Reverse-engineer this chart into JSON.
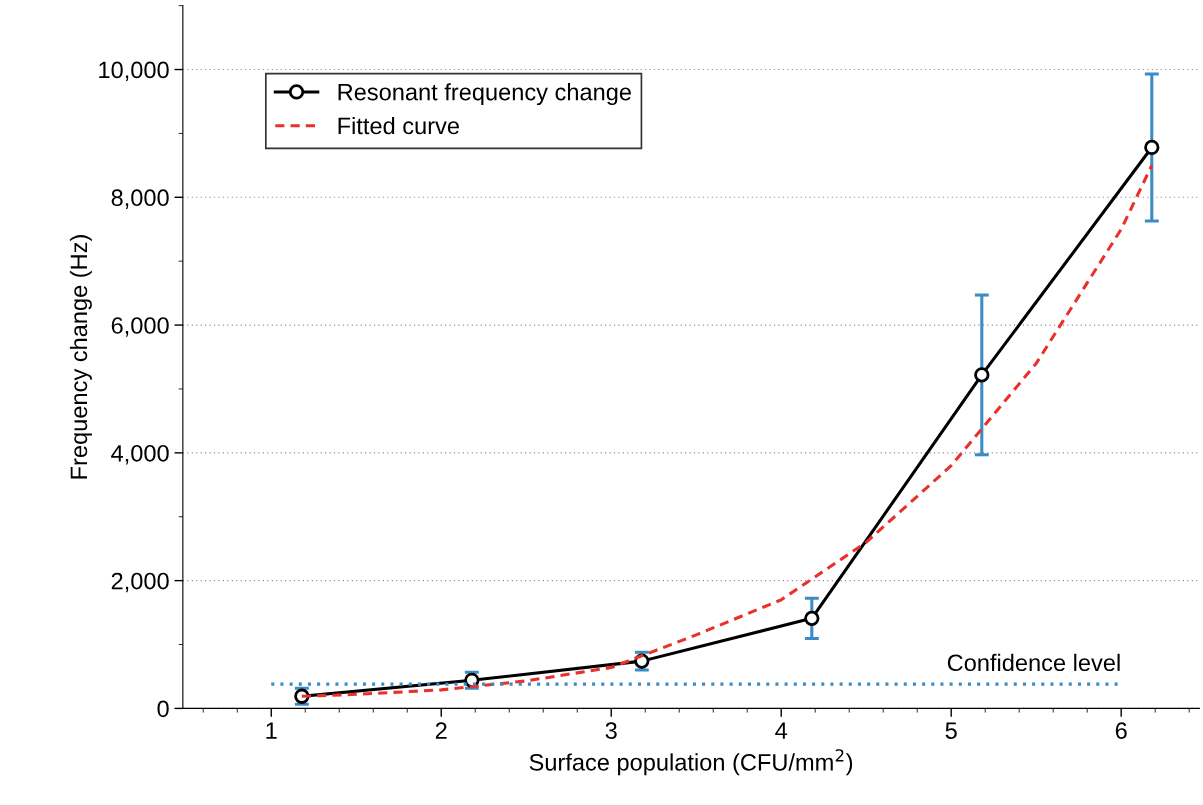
{
  "chart_data": {
    "type": "line",
    "xlabel": "Surface population (CFU/mm$^{2}$)",
    "ylabel": "Frequency change (Hz)",
    "xlim": [
      0.48,
      6.46
    ],
    "xticks": [
      1,
      2,
      3,
      4,
      5,
      6
    ],
    "ylim": [
      0,
      11000
    ],
    "yticks": [
      {
        "value": 0,
        "label": "0"
      },
      {
        "value": 2000,
        "label": "2,000"
      },
      {
        "value": 4000,
        "label": "4,000"
      },
      {
        "value": 6000,
        "label": "6,000"
      },
      {
        "value": 8000,
        "label": "8,000"
      },
      {
        "value": 10000,
        "label": "10,000"
      }
    ],
    "grid": "y",
    "legend": "top left",
    "annotations": [
      {
        "text": "Confidence level",
        "x": 6,
        "y": 380
      }
    ],
    "series": [
      {
        "name": "Resonant frequency change",
        "color": "#000000",
        "marker": "circle",
        "line_style": "solid",
        "x": [
          1.18,
          2.18,
          3.18,
          4.18,
          5.18,
          6.18
        ],
        "values": [
          190,
          440,
          740,
          1410,
          5220,
          8780
        ],
        "errors": [
          125,
          125,
          140,
          315,
          1250,
          1150
        ]
      },
      {
        "name": "Fitted curve",
        "color": "#e8312a",
        "marker": "none",
        "line_style": "dashed",
        "x": [
          1.18,
          1.5,
          2,
          2.5,
          3,
          3.5,
          4,
          4.5,
          5,
          5.5,
          6,
          6.18
        ],
        "values": [
          190,
          220,
          290,
          430,
          640,
          1150,
          1700,
          2600,
          3800,
          5400,
          7500,
          8500
        ]
      },
      {
        "color": "#3b8bc4",
        "marker": "none",
        "line_style": "dotted",
        "x": [
          1,
          6
        ],
        "values": [
          380,
          380
        ]
      }
    ]
  }
}
